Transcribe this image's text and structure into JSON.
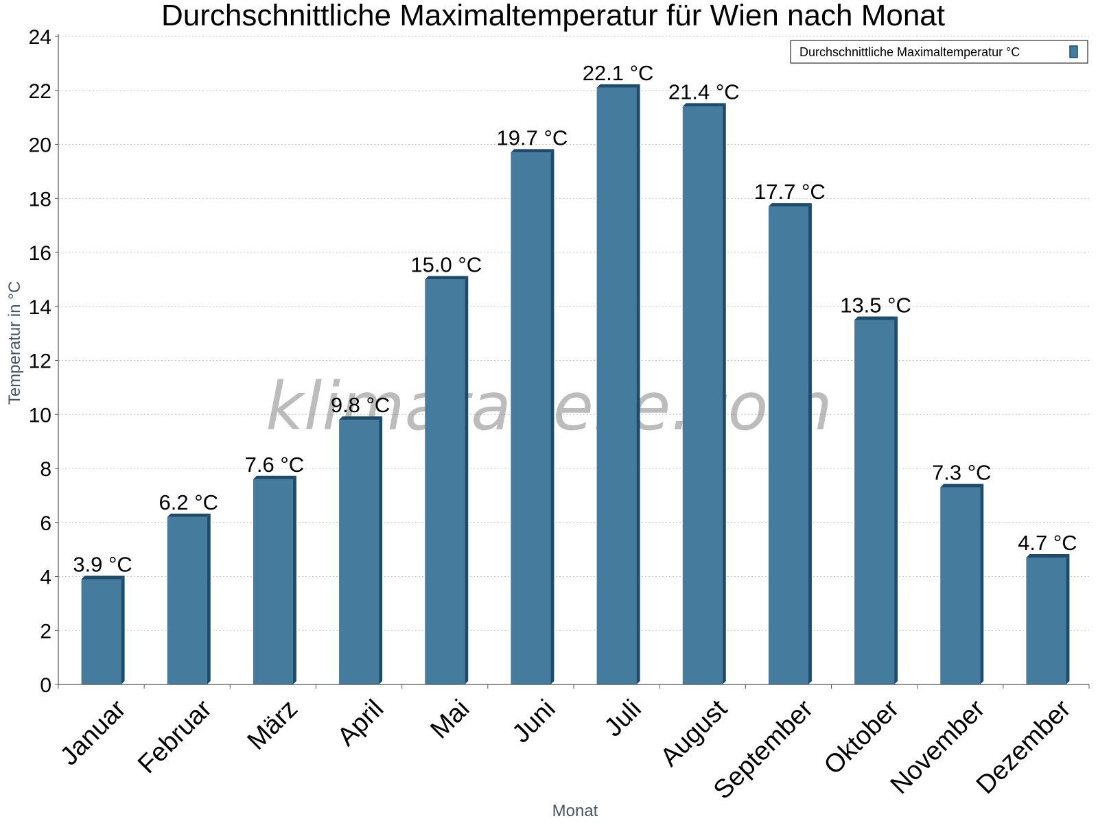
{
  "chart_data": {
    "type": "bar",
    "title": "Durchschnittliche Maximaltemperatur für Wien nach Monat",
    "xlabel": "Monat",
    "ylabel": "Temperatur in °C",
    "ylim": [
      0,
      24
    ],
    "yticks": [
      0,
      2,
      4,
      6,
      8,
      10,
      12,
      14,
      16,
      18,
      20,
      22,
      24
    ],
    "grid": true,
    "legend_position": "top-right",
    "categories": [
      "Januar",
      "Februar",
      "März",
      "April",
      "Mai",
      "Juni",
      "Juli",
      "August",
      "September",
      "Oktober",
      "November",
      "Dezember"
    ],
    "series": [
      {
        "name": "Durchschnittliche Maximaltemperatur °C",
        "values": [
          3.9,
          6.2,
          7.6,
          9.8,
          15.0,
          19.7,
          22.1,
          21.4,
          17.7,
          13.5,
          7.3,
          4.7
        ],
        "labels": [
          "3.9 °C",
          "6.2 °C",
          "7.6 °C",
          "9.8 °C",
          "15.0 °C",
          "19.7 °C",
          "22.1 °C",
          "21.4 °C",
          "17.7 °C",
          "13.5 °C",
          "7.3 °C",
          "4.7 °C"
        ],
        "color": "#457b9d",
        "edge_color": "#1d4b6b"
      }
    ]
  },
  "watermark": "klimatabelle.com"
}
